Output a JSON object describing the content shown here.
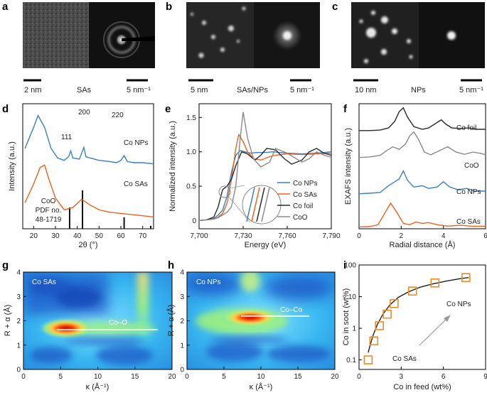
{
  "colors": {
    "co_nps": "#3a7fc0",
    "co_sas": "#f0601e",
    "co_foil": "#2a2a2a",
    "coo": "#8a8a8a",
    "marker": "#f08a22"
  },
  "panels": {
    "a": {
      "label": "a",
      "scale1": "2 nm",
      "scale2": "5 nm⁻¹",
      "caption": "SAs"
    },
    "b": {
      "label": "b",
      "scale1": "5 nm",
      "scale2": "5 nm⁻¹",
      "caption": "SAs/NPs"
    },
    "c": {
      "label": "c",
      "scale1": "10 nm",
      "scale2": "5 nm⁻¹",
      "caption": "NPs"
    },
    "d": {
      "label": "d",
      "ylabel": "Intensity (a.u.)",
      "xlabel": "2θ (°)",
      "peaks": [
        "111",
        "200",
        "220"
      ],
      "series": [
        "Co NPs",
        "Co SAs"
      ],
      "ref": [
        "CoO",
        "PDF no.",
        "48-1719"
      ]
    },
    "e": {
      "label": "e",
      "ylabel": "Normalized intensity (a.u.)",
      "xlabel": "Energy (eV)",
      "legend": [
        "Co NPs",
        "Co SAs",
        "Co foil",
        "CoO"
      ]
    },
    "f": {
      "label": "f",
      "ylabel": "EXAFS intensity (a.u.)",
      "xlabel": "Radial distance (Å)",
      "series": [
        "Co foil",
        "CoO",
        "Co NPs",
        "Co SAs"
      ]
    },
    "g": {
      "label": "g",
      "title": "Co SAs",
      "bond": "Co–O",
      "ylabel": "R + α (Å)",
      "xlabel": "κ (Å⁻¹)"
    },
    "h": {
      "label": "h",
      "title": "Co NPs",
      "bond": "Co–Co",
      "ylabel": "R + α (Å)",
      "xlabel": "κ (Å⁻¹)"
    },
    "i": {
      "label": "i",
      "ylabel": "Co in soot (wt%)",
      "xlabel": "Co in feed (wt%)",
      "arrow_start": "Co SAs",
      "arrow_end": "Co NPs"
    }
  },
  "chart_data": [
    {
      "panel": "d",
      "type": "line",
      "xlabel": "2θ (°)",
      "ylabel": "Intensity (a.u.)",
      "xlim": [
        15,
        75
      ],
      "xticks": [
        "20",
        "30",
        "40",
        "50",
        "60",
        "70"
      ],
      "reference_lines": [
        36.5,
        42.4,
        61.5,
        73.7
      ],
      "series": [
        {
          "name": "Co NPs",
          "x": [
            16,
            20,
            22,
            25,
            28,
            31,
            34,
            36,
            37,
            38,
            41,
            43,
            44,
            46,
            50,
            55,
            58,
            60,
            61.5,
            63,
            66,
            70,
            75
          ],
          "y": [
            5.7,
            6.6,
            7.1,
            6.6,
            5.7,
            5.3,
            5.2,
            5.35,
            5.6,
            5.3,
            5.25,
            5.75,
            5.35,
            5.3,
            5.2,
            5.15,
            5.1,
            5.2,
            5.4,
            5.15,
            5.1,
            5.1,
            5.05
          ]
        },
        {
          "name": "Co SAs",
          "x": [
            16,
            20,
            23,
            25,
            27,
            30,
            34,
            38,
            42,
            46,
            50,
            55,
            60,
            65,
            70,
            75
          ],
          "y": [
            3.4,
            4.2,
            4.9,
            5.0,
            4.4,
            3.6,
            3.1,
            3.2,
            3.55,
            3.3,
            3.1,
            3.0,
            2.95,
            2.9,
            2.85,
            2.8
          ]
        }
      ]
    },
    {
      "panel": "e",
      "type": "line",
      "xlabel": "Energy (eV)",
      "ylabel": "Normalized intensity (a.u.)",
      "xlim": [
        7700,
        7790
      ],
      "ylim": [
        -0.12,
        1.7
      ],
      "xticks": [
        "7,700",
        "7,730",
        "7,760",
        "7,790"
      ],
      "yticks": [
        "0",
        "0.5",
        "1.0",
        "1.5"
      ],
      "series": [
        {
          "name": "Co NPs",
          "x": [
            7700,
            7705,
            7710,
            7713,
            7716,
            7719,
            7722,
            7725,
            7728,
            7731,
            7735,
            7740,
            7745,
            7750,
            7760,
            7770,
            7780,
            7790
          ],
          "y": [
            0,
            0.01,
            0.03,
            0.08,
            0.15,
            0.35,
            0.7,
            0.95,
            1.02,
            1.0,
            0.98,
            0.99,
            0.99,
            1.0,
            0.98,
            0.97,
            0.98,
            1.0
          ]
        },
        {
          "name": "Co SAs",
          "x": [
            7700,
            7705,
            7710,
            7713,
            7716,
            7719,
            7722,
            7725,
            7727,
            7730,
            7733,
            7737,
            7742,
            7748,
            7752,
            7760,
            7770,
            7780,
            7790
          ],
          "y": [
            0,
            0.01,
            0.02,
            0.05,
            0.1,
            0.25,
            0.6,
            1.05,
            1.25,
            1.15,
            1.0,
            0.9,
            0.88,
            0.93,
            0.95,
            0.97,
            0.96,
            0.97,
            0.98
          ]
        },
        {
          "name": "Co foil",
          "x": [
            7700,
            7705,
            7710,
            7713,
            7716,
            7719,
            7722,
            7725,
            7729,
            7733,
            7738,
            7742,
            7746,
            7752,
            7758,
            7763,
            7770,
            7775,
            7780,
            7785,
            7790
          ],
          "y": [
            0,
            0.01,
            0.05,
            0.2,
            0.45,
            0.5,
            0.6,
            0.8,
            1.0,
            0.97,
            0.88,
            0.95,
            1.05,
            1.03,
            0.9,
            0.82,
            0.88,
            1.0,
            1.05,
            0.98,
            0.95
          ]
        },
        {
          "name": "CoO",
          "x": [
            7700,
            7705,
            7710,
            7713,
            7716,
            7719,
            7722,
            7725,
            7728,
            7730,
            7733,
            7737,
            7742,
            7748,
            7752,
            7760,
            7770,
            7775,
            7780,
            7785,
            7790
          ],
          "y": [
            0,
            0.01,
            0.02,
            0.04,
            0.08,
            0.12,
            0.2,
            0.5,
            1.2,
            1.58,
            1.2,
            0.9,
            0.78,
            0.85,
            1.05,
            0.98,
            0.85,
            0.9,
            1.0,
            0.95,
            0.92
          ]
        }
      ]
    },
    {
      "panel": "f",
      "type": "line",
      "xlabel": "Radial distance (Å)",
      "ylabel": "EXAFS intensity (a.u.)",
      "xlim": [
        0,
        6
      ],
      "xticks": [
        "0",
        "2",
        "4",
        "6"
      ],
      "ylim": [
        -0.05,
        4.6
      ],
      "series": [
        {
          "name": "Co foil",
          "x": [
            0,
            0.5,
            1,
            1.4,
            1.7,
            1.9,
            2.1,
            2.3,
            2.6,
            3,
            3.3,
            3.6,
            3.9,
            4.1,
            4.4,
            4.8,
            5.2,
            5.6,
            6
          ],
          "y": [
            3.6,
            3.6,
            3.62,
            3.7,
            3.95,
            4.3,
            4.45,
            4.1,
            3.75,
            3.65,
            3.7,
            3.85,
            4.0,
            3.85,
            3.7,
            3.68,
            3.7,
            3.65,
            3.65
          ]
        },
        {
          "name": "CoO",
          "x": [
            0,
            0.5,
            1,
            1.3,
            1.6,
            1.9,
            2.2,
            2.4,
            2.6,
            2.8,
            3.1,
            3.4,
            3.8,
            4.2,
            4.6,
            5,
            5.4,
            5.8,
            6
          ],
          "y": [
            2.6,
            2.62,
            2.68,
            2.85,
            3.0,
            2.9,
            3.1,
            3.4,
            3.55,
            3.3,
            2.8,
            2.7,
            2.85,
            3.0,
            2.8,
            2.72,
            2.8,
            2.75,
            2.7
          ]
        },
        {
          "name": "Co NPs",
          "x": [
            0,
            0.5,
            1,
            1.4,
            1.7,
            1.9,
            2.1,
            2.3,
            2.6,
            3,
            3.3,
            3.7,
            4,
            4.3,
            4.7,
            5.1,
            5.5,
            6
          ],
          "y": [
            1.25,
            1.27,
            1.3,
            1.55,
            1.7,
            1.8,
            2.1,
            1.75,
            1.5,
            1.55,
            1.45,
            1.5,
            1.7,
            1.5,
            1.4,
            1.45,
            1.35,
            1.35
          ]
        },
        {
          "name": "Co SAs",
          "x": [
            0,
            0.5,
            0.9,
            1.2,
            1.5,
            1.8,
            2.1,
            2.4,
            2.7,
            3,
            3.3,
            3.7,
            4.2,
            4.8,
            5.4,
            6
          ],
          "y": [
            0.02,
            0.03,
            0.1,
            0.5,
            0.9,
            0.55,
            0.15,
            0.1,
            0.2,
            0.15,
            0.18,
            0.1,
            0.05,
            0.08,
            0.04,
            0.04
          ]
        }
      ]
    },
    {
      "panel": "g",
      "type": "heatmap",
      "title": "Co SAs",
      "xlabel": "κ (Å⁻¹)",
      "ylabel": "R + α (Å)",
      "xlim": [
        0,
        20
      ],
      "ylim": [
        0,
        4
      ],
      "xticks": [
        "0",
        "5",
        "10",
        "15",
        "20"
      ],
      "yticks": [
        "0",
        "1",
        "2",
        "3",
        "4"
      ],
      "maximum": {
        "k": 6,
        "r": 1.55,
        "label": "Co–O"
      }
    },
    {
      "panel": "h",
      "type": "heatmap",
      "title": "Co NPs",
      "xlabel": "κ (Å⁻¹)",
      "ylabel": "R + α (Å)",
      "xlim": [
        0,
        20
      ],
      "ylim": [
        0,
        4
      ],
      "xticks": [
        "0",
        "5",
        "10",
        "15",
        "20"
      ],
      "yticks": [
        "0",
        "1",
        "2",
        "3",
        "4"
      ],
      "maximum": {
        "k": 9,
        "r": 2.1,
        "label": "Co–Co"
      }
    },
    {
      "panel": "i",
      "type": "scatter",
      "xlabel": "Co in feed (wt%)",
      "ylabel": "Co in soot (wt%)",
      "xlim": [
        0,
        9
      ],
      "yscale": "log",
      "ylim": [
        0.05,
        100
      ],
      "xticks": [
        "0",
        "3",
        "6",
        "9"
      ],
      "yticks": [
        "0.1",
        "1",
        "10",
        "100"
      ],
      "x": [
        0.65,
        1.05,
        1.45,
        2.0,
        2.5,
        3.8,
        5.4,
        7.6
      ],
      "y": [
        0.1,
        0.4,
        1.2,
        2.8,
        6.0,
        15,
        27,
        40
      ],
      "fit": {
        "x": [
          0.65,
          0.8,
          1.0,
          1.3,
          1.7,
          2.2,
          2.8,
          3.5,
          4.3,
          5.2,
          6.2,
          7.2,
          7.8
        ],
        "y": [
          0.17,
          0.3,
          0.6,
          1.3,
          2.8,
          5.5,
          9.5,
          14,
          19.5,
          25,
          31,
          37,
          40
        ]
      }
    }
  ]
}
